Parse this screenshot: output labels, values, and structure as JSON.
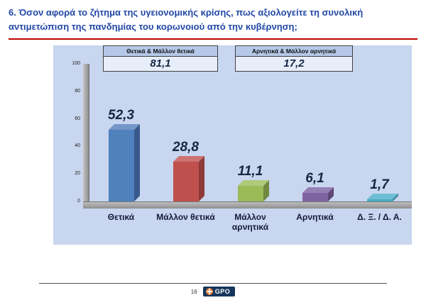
{
  "slide": {
    "title": "6. Όσον αφορά το ζήτημα της υγειονομικής κρίσης, πως αξιολογείτε τη συνολική αντιμετώπιση της πανδημίας του κορωνοιού από την κυβέρνηση;"
  },
  "chart_data": {
    "type": "bar",
    "categories": [
      "Θετικά",
      "Μάλλον θετικά",
      "Μάλλον αρνητικά",
      "Αρνητικά",
      "Δ. Ξ. / Δ. Α."
    ],
    "values": [
      52.3,
      28.8,
      11.1,
      6.1,
      1.7
    ],
    "value_labels": [
      "52,3",
      "28,8",
      "11,1",
      "6,1",
      "1,7"
    ],
    "bar_colors": [
      "#4f81bd",
      "#c0504d",
      "#9bbb59",
      "#8064a2",
      "#4bacc6"
    ],
    "bar_colors_top": [
      "#7396c8",
      "#cd7371",
      "#afc97a",
      "#9680b4",
      "#6fbdd3"
    ],
    "bar_colors_side": [
      "#38598c",
      "#8d3a38",
      "#71893f",
      "#5d4876",
      "#357e93"
    ],
    "ylim": [
      0,
      100
    ],
    "yticks": [
      0,
      20,
      40,
      60,
      80,
      100
    ],
    "grid": false,
    "legend": "none",
    "background": "#c8d6ef",
    "summaries": [
      {
        "label": "Θετικά & Μάλλον θετικά",
        "value": "81,1"
      },
      {
        "label": "Αρνητικά & Μάλλον αρνητικά",
        "value": "17,2"
      }
    ]
  },
  "footer": {
    "page_number": "16",
    "logo_text": "GPO"
  }
}
